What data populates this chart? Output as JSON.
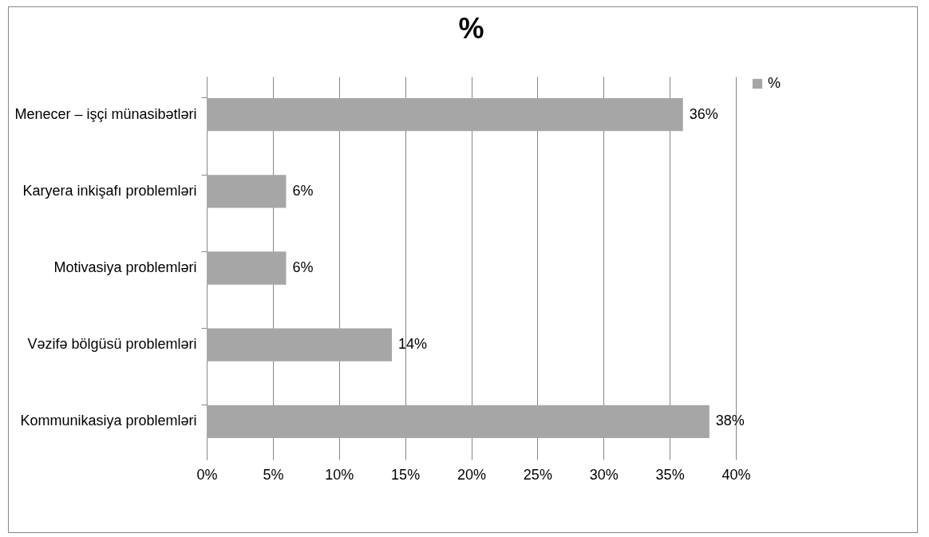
{
  "chart_data": {
    "type": "bar",
    "orientation": "horizontal",
    "title": "%",
    "categories": [
      "Menecer – işçi münasibətləri",
      "Karyera inkişafı problemləri",
      "Motivasiya problemləri",
      "Vəzifə bölgüsü problemləri",
      "Kommunikasiya problemləri"
    ],
    "series": [
      {
        "name": "%",
        "color": "#a6a6a6",
        "values": [
          36,
          6,
          6,
          14,
          38
        ],
        "value_labels": [
          "36%",
          "6%",
          "6%",
          "14%",
          "38%"
        ]
      }
    ],
    "xlim": [
      0,
      40
    ],
    "xticks": [
      {
        "value": 0,
        "label": "0%"
      },
      {
        "value": 5,
        "label": "5%"
      },
      {
        "value": 10,
        "label": "10%"
      },
      {
        "value": 15,
        "label": "15%"
      },
      {
        "value": 20,
        "label": "20%"
      },
      {
        "value": 25,
        "label": "25%"
      },
      {
        "value": 30,
        "label": "30%"
      },
      {
        "value": 35,
        "label": "35%"
      },
      {
        "value": 40,
        "label": "40%"
      }
    ],
    "grid": "x",
    "legend": "right"
  }
}
